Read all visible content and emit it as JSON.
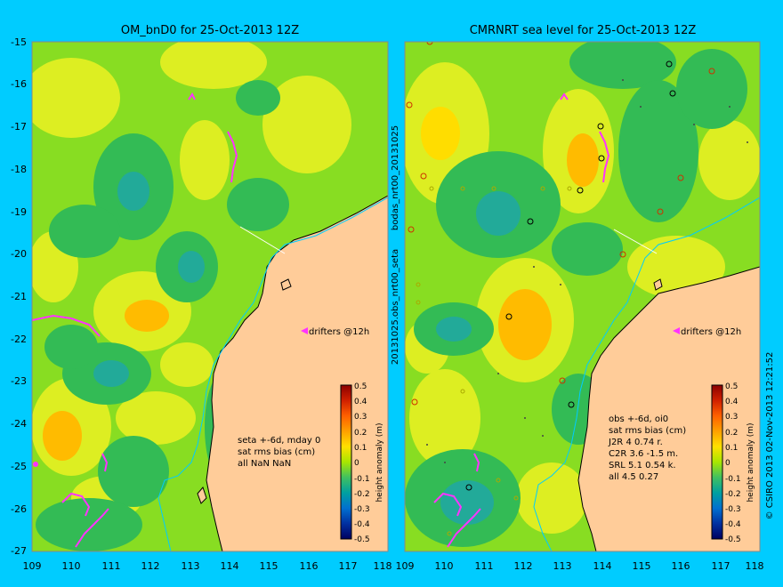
{
  "left_panel": {
    "title": "OM_bnD0 for 25-Oct-2013 12Z",
    "stats_lines": [
      "seta +-6d, mday 0",
      "sat rms bias (cm)",
      "all NaN NaN"
    ],
    "drifters_label": "drifters @12h",
    "y_ticks": [
      "-15",
      "-16",
      "-17",
      "-18",
      "-19",
      "-20",
      "-21",
      "-22",
      "-23",
      "-24",
      "-25",
      "-26",
      "-27"
    ],
    "x_ticks": [
      "109",
      "110",
      "111",
      "112",
      "113",
      "114",
      "115",
      "116",
      "117",
      "118"
    ]
  },
  "right_panel": {
    "title": "CMRNRT sea level  for 25-Oct-2013 12Z",
    "stats_lines": [
      "obs +-6d, oi0",
      "sat rms bias (cm)",
      "J2R   4 0.74 r.",
      "C2R   3.6 -1.5 m.",
      "SRL   5.1 0.54 k.",
      "all   4.5 0.27"
    ],
    "drifters_label": "drifters @12h",
    "x_ticks": [
      "109",
      "110",
      "111",
      "112",
      "113",
      "114",
      "115",
      "116",
      "117",
      "118"
    ]
  },
  "side_labels": {
    "bodas": "bodas_nrt00_20131025",
    "obs": "20131025.obs_nrt00_seta",
    "credit": "© CSIRO 2013   02-Nov-2013 12:21:52"
  },
  "colorbar": {
    "label": "height anomaly (m)",
    "ticks": [
      "0.5",
      "0.4",
      "0.3",
      "0.2",
      "0.1",
      "0",
      "-0.1",
      "-0.2",
      "-0.3",
      "-0.4",
      "-0.5"
    ],
    "colors": [
      "#8b0000",
      "#c81e00",
      "#ff5000",
      "#ff9a00",
      "#ffd000",
      "#e8f000",
      "#a8e600",
      "#60d040",
      "#20b070",
      "#00a0a0",
      "#0078d0",
      "#0040b0",
      "#001070"
    ]
  },
  "map_colors": {
    "land": "#ffcc99",
    "sea_base": "#88dd22",
    "high": "#ddee22",
    "higher": "#ffbb00",
    "low": "#33bb55",
    "lower": "#22aa99",
    "drifter": "#ff33ff",
    "coast_line": "#000000"
  }
}
